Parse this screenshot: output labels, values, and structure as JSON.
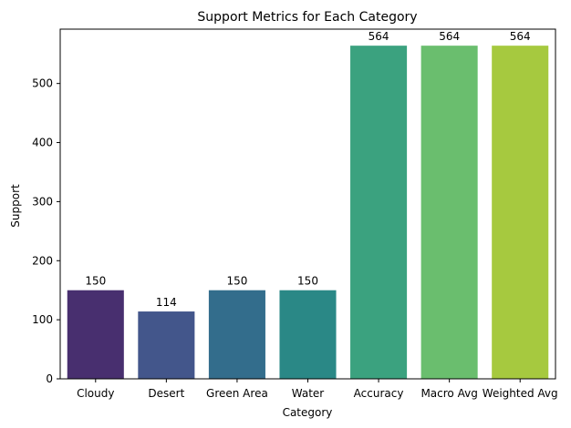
{
  "chart_data": {
    "type": "bar",
    "title": "Support Metrics for Each Category",
    "xlabel": "Category",
    "ylabel": "Support",
    "categories": [
      "Cloudy",
      "Desert",
      "Green Area",
      "Water",
      "Accuracy",
      "Macro Avg",
      "Weighted Avg"
    ],
    "values": [
      150,
      114,
      150,
      150,
      564,
      564,
      564
    ],
    "data_labels": [
      "150",
      "114",
      "150",
      "150",
      "564",
      "564",
      "564"
    ],
    "colors": [
      "#482f6f",
      "#43568b",
      "#336d8c",
      "#2a8886",
      "#3ba27f",
      "#6abe6e",
      "#a6c93f"
    ],
    "yticks": [
      0,
      100,
      200,
      300,
      400,
      500
    ],
    "ylim": [
      0,
      592
    ],
    "grid": false,
    "legend": "none"
  }
}
